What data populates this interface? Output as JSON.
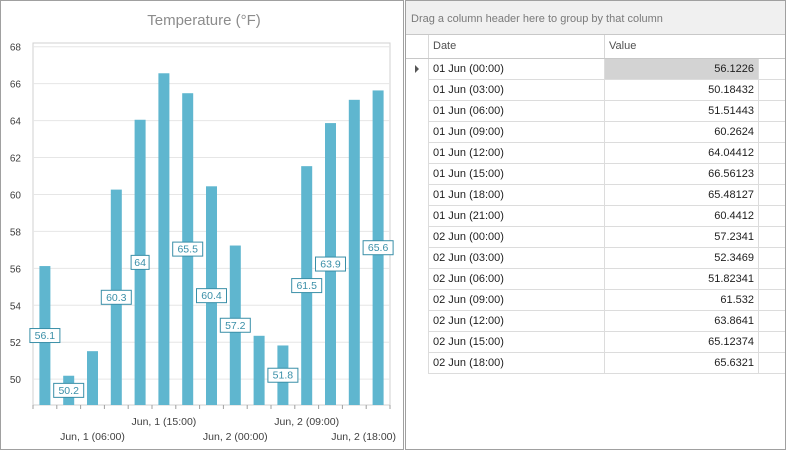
{
  "chart_data": {
    "type": "bar",
    "title": "Temperature (°F)",
    "categories": [
      "01 Jun (00:00)",
      "01 Jun (03:00)",
      "01 Jun (06:00)",
      "01 Jun (09:00)",
      "01 Jun (12:00)",
      "01 Jun (15:00)",
      "01 Jun (18:00)",
      "01 Jun (21:00)",
      "02 Jun (00:00)",
      "02 Jun (03:00)",
      "02 Jun (06:00)",
      "02 Jun (09:00)",
      "02 Jun (12:00)",
      "02 Jun (15:00)",
      "02 Jun (18:00)"
    ],
    "values": [
      56.1226,
      50.18432,
      51.51443,
      60.2624,
      64.04412,
      66.56123,
      65.48127,
      60.4412,
      57.2341,
      52.3469,
      51.82341,
      61.532,
      63.8641,
      65.12374,
      65.6321
    ],
    "data_labels": [
      "56.1",
      "50.2",
      "",
      "60.3",
      "64",
      "",
      "65.5",
      "60.4",
      "57.2",
      "",
      "51.8",
      "61.5",
      "63.9",
      "",
      "65.6"
    ],
    "ylim": [
      48.6,
      68.2
    ],
    "yticks": [
      "50",
      "52",
      "54",
      "56",
      "58",
      "60",
      "62",
      "64",
      "66",
      "68"
    ],
    "xticks_row1": [
      "Jun, 1 (15:00)",
      "Jun, 2 (09:00)"
    ],
    "xticks_row2": [
      "Jun, 1 (06:00)",
      "Jun, 2 (00:00)",
      "Jun, 2 (18:00)"
    ],
    "grid": true,
    "bar_color": "#5fb6cf",
    "label_color": "#3a8fa8"
  },
  "grid": {
    "group_panel_text": "Drag a column header here to group by that column",
    "columns": [
      "Date",
      "Value"
    ],
    "rows": [
      {
        "date": "01 Jun (00:00)",
        "value": "56.1226"
      },
      {
        "date": "01 Jun (03:00)",
        "value": "50.18432"
      },
      {
        "date": "01 Jun (06:00)",
        "value": "51.51443"
      },
      {
        "date": "01 Jun (09:00)",
        "value": "60.2624"
      },
      {
        "date": "01 Jun (12:00)",
        "value": "64.04412"
      },
      {
        "date": "01 Jun (15:00)",
        "value": "66.56123"
      },
      {
        "date": "01 Jun (18:00)",
        "value": "65.48127"
      },
      {
        "date": "01 Jun (21:00)",
        "value": "60.4412"
      },
      {
        "date": "02 Jun (00:00)",
        "value": "57.2341"
      },
      {
        "date": "02 Jun (03:00)",
        "value": "52.3469"
      },
      {
        "date": "02 Jun (06:00)",
        "value": "51.82341"
      },
      {
        "date": "02 Jun (09:00)",
        "value": "61.532"
      },
      {
        "date": "02 Jun (12:00)",
        "value": "63.8641"
      },
      {
        "date": "02 Jun (15:00)",
        "value": "65.12374"
      },
      {
        "date": "02 Jun (18:00)",
        "value": "65.6321"
      }
    ]
  }
}
